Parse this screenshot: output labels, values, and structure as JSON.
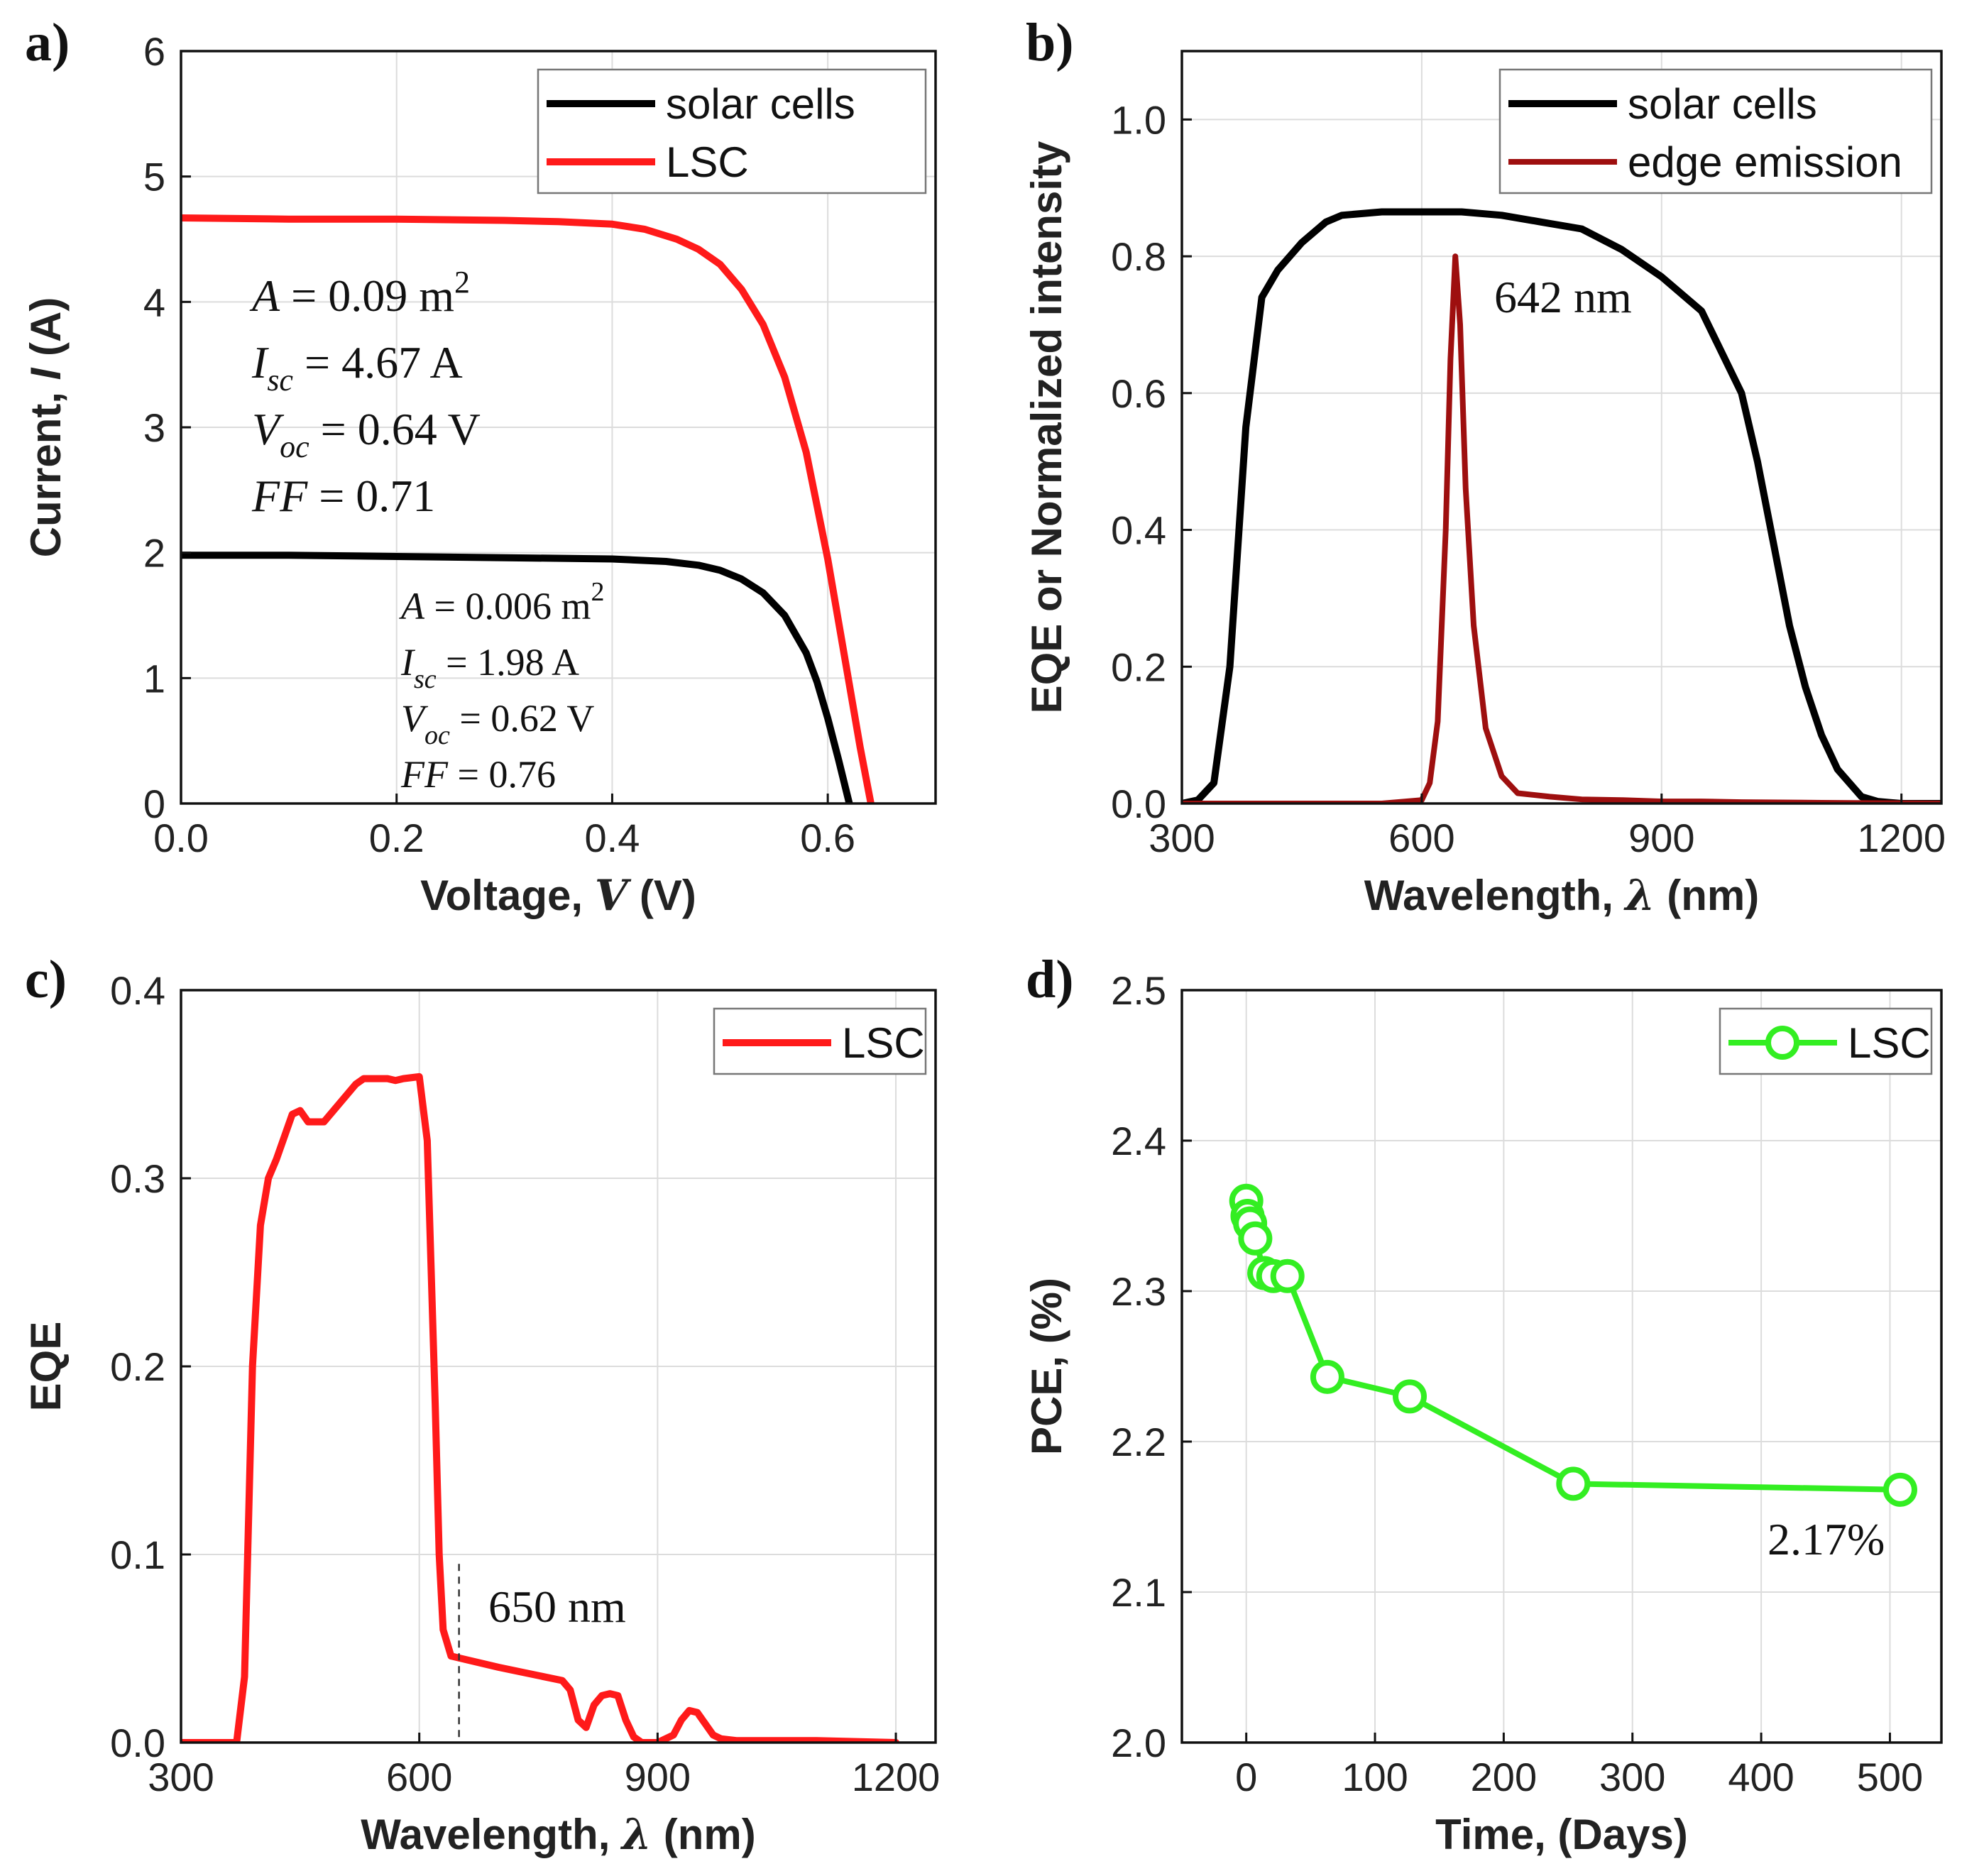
{
  "figure": {
    "colors": {
      "black": "#000000",
      "red": "#ff1a1a",
      "darkred": "#9e0f0f",
      "green": "#33ee22"
    }
  },
  "chart_data": [
    {
      "id": "a",
      "panel_label": "a)",
      "type": "line",
      "xlabel_pre": "Voltage, ",
      "xlabel_var": "V",
      "xlabel_post": " (V)",
      "ylabel_pre": "Current, ",
      "ylabel_var": "I",
      "ylabel_post": " (A)",
      "xlim": [
        0,
        0.7
      ],
      "ylim": [
        0,
        6
      ],
      "xticks": [
        0,
        0.2,
        0.4,
        0.6
      ],
      "xtick_labels": [
        "0.0",
        "0.2",
        "0.4",
        "0.6"
      ],
      "yticks": [
        0,
        1,
        2,
        3,
        4,
        5,
        6
      ],
      "ytick_labels": [
        "0",
        "1",
        "2",
        "3",
        "4",
        "5",
        "6"
      ],
      "grid": true,
      "legend_position": "top-right",
      "series": [
        {
          "name": "solar cells",
          "color": "#000000",
          "width": 10,
          "x": [
            0,
            0.1,
            0.2,
            0.3,
            0.4,
            0.45,
            0.48,
            0.5,
            0.52,
            0.54,
            0.56,
            0.58,
            0.59,
            0.6,
            0.61,
            0.62
          ],
          "y": [
            1.98,
            1.98,
            1.97,
            1.96,
            1.95,
            1.93,
            1.9,
            1.86,
            1.79,
            1.68,
            1.5,
            1.2,
            0.97,
            0.68,
            0.35,
            0.0
          ]
        },
        {
          "name": "LSC",
          "color": "#ff1a1a",
          "width": 10,
          "x": [
            0,
            0.1,
            0.2,
            0.3,
            0.35,
            0.4,
            0.43,
            0.46,
            0.48,
            0.5,
            0.52,
            0.54,
            0.56,
            0.58,
            0.6,
            0.61,
            0.62,
            0.63,
            0.64
          ],
          "y": [
            4.67,
            4.66,
            4.66,
            4.65,
            4.64,
            4.62,
            4.58,
            4.5,
            4.42,
            4.3,
            4.1,
            3.82,
            3.4,
            2.8,
            1.95,
            1.45,
            0.95,
            0.45,
            0.0
          ]
        }
      ],
      "annotations": [
        {
          "lines": [
            {
              "pre": "",
              "var": "A",
              "sub": "",
              "post": " = 0.09 m",
              "sup": "2"
            },
            {
              "pre": "",
              "var": "I",
              "sub": "sc",
              "post": " = 4.67 A",
              "sup": ""
            },
            {
              "pre": "",
              "var": "V",
              "sub": "oc",
              "post": " = 0.64 V",
              "sup": ""
            },
            {
              "pre": "",
              "var": "FF",
              "sub": "",
              "post": " = 0.71",
              "sup": ""
            }
          ]
        },
        {
          "lines": [
            {
              "pre": "",
              "var": "A",
              "sub": "",
              "post": " = 0.006 m",
              "sup": "2"
            },
            {
              "pre": "",
              "var": "I",
              "sub": "sc",
              "post": " = 1.98 A",
              "sup": ""
            },
            {
              "pre": "",
              "var": "V",
              "sub": "oc",
              "post": " = 0.62 V",
              "sup": ""
            },
            {
              "pre": "",
              "var": "FF",
              "sub": "",
              "post": " = 0.76",
              "sup": ""
            }
          ]
        }
      ]
    },
    {
      "id": "b",
      "panel_label": "b)",
      "type": "line",
      "xlabel_pre": "Wavelength, ",
      "xlabel_var": "λ",
      "xlabel_post": " (nm)",
      "ylabel_pre": "EQE or Normalized intensity",
      "ylabel_var": "",
      "ylabel_post": "",
      "xlim": [
        300,
        1250
      ],
      "ylim": [
        0,
        1.1
      ],
      "xticks": [
        300,
        600,
        900,
        1200
      ],
      "xtick_labels": [
        "300",
        "600",
        "900",
        "1200"
      ],
      "yticks": [
        0,
        0.2,
        0.4,
        0.6,
        0.8,
        1.0
      ],
      "ytick_labels": [
        "0.0",
        "0.2",
        "0.4",
        "0.6",
        "0.8",
        "1.0"
      ],
      "grid": true,
      "legend_position": "top-right",
      "series": [
        {
          "name": "solar cells",
          "color": "#000000",
          "width": 10,
          "x": [
            300,
            320,
            340,
            360,
            380,
            400,
            420,
            450,
            480,
            500,
            550,
            600,
            650,
            700,
            750,
            800,
            850,
            900,
            950,
            1000,
            1020,
            1040,
            1060,
            1080,
            1100,
            1120,
            1150,
            1170,
            1200,
            1250
          ],
          "y": [
            0,
            0.005,
            0.03,
            0.2,
            0.55,
            0.74,
            0.78,
            0.82,
            0.85,
            0.86,
            0.865,
            0.865,
            0.865,
            0.86,
            0.85,
            0.84,
            0.81,
            0.77,
            0.72,
            0.6,
            0.5,
            0.38,
            0.26,
            0.17,
            0.1,
            0.05,
            0.01,
            0.003,
            0,
            0
          ]
        },
        {
          "name": "edge emission",
          "color": "#9e0f0f",
          "width": 8,
          "x": [
            300,
            550,
            600,
            610,
            620,
            630,
            636,
            642,
            648,
            655,
            665,
            680,
            700,
            720,
            760,
            800,
            850,
            900,
            950,
            1000,
            1100,
            1250
          ],
          "y": [
            0,
            0,
            0.005,
            0.03,
            0.12,
            0.4,
            0.65,
            0.8,
            0.7,
            0.46,
            0.26,
            0.11,
            0.04,
            0.015,
            0.01,
            0.006,
            0.005,
            0.003,
            0.003,
            0.002,
            0.001,
            0
          ]
        }
      ],
      "annotations": [
        {
          "text": "642 nm"
        }
      ]
    },
    {
      "id": "c",
      "panel_label": "c)",
      "type": "line",
      "xlabel_pre": "Wavelength, ",
      "xlabel_var": "λ",
      "xlabel_post": " (nm)",
      "ylabel_pre": "EQE",
      "ylabel_var": "",
      "ylabel_post": "",
      "xlim": [
        300,
        1250
      ],
      "ylim": [
        0,
        0.4
      ],
      "xticks": [
        300,
        600,
        900,
        1200
      ],
      "xtick_labels": [
        "300",
        "600",
        "900",
        "1200"
      ],
      "yticks": [
        0,
        0.1,
        0.2,
        0.3,
        0.4
      ],
      "ytick_labels": [
        "0.0",
        "0.1",
        "0.2",
        "0.3",
        "0.4"
      ],
      "grid": true,
      "legend_position": "top-right",
      "marker_x": 650,
      "series": [
        {
          "name": "LSC",
          "color": "#ff1a1a",
          "width": 10,
          "x": [
            300,
            370,
            380,
            390,
            400,
            410,
            420,
            440,
            450,
            460,
            480,
            500,
            520,
            530,
            560,
            570,
            580,
            600,
            610,
            620,
            625,
            630,
            640,
            650,
            700,
            780,
            790,
            800,
            810,
            820,
            830,
            840,
            850,
            860,
            870,
            880,
            900,
            920,
            930,
            940,
            950,
            960,
            970,
            980,
            1000,
            1100,
            1200
          ],
          "y": [
            0,
            0,
            0.035,
            0.2,
            0.275,
            0.3,
            0.31,
            0.334,
            0.336,
            0.33,
            0.33,
            0.34,
            0.35,
            0.353,
            0.353,
            0.352,
            0.353,
            0.354,
            0.32,
            0.18,
            0.1,
            0.06,
            0.046,
            0.045,
            0.04,
            0.033,
            0.028,
            0.012,
            0.008,
            0.02,
            0.025,
            0.026,
            0.025,
            0.012,
            0.003,
            0.0,
            0.0,
            0.004,
            0.012,
            0.017,
            0.016,
            0.01,
            0.004,
            0.002,
            0.001,
            0.001,
            0
          ]
        }
      ],
      "annotations": [
        {
          "text": "650 nm"
        }
      ]
    },
    {
      "id": "d",
      "panel_label": "d)",
      "type": "scatter",
      "xlabel_pre": "Time, (Days)",
      "xlabel_var": "",
      "xlabel_post": "",
      "ylabel_pre": "PCE, (%)",
      "ylabel_var": "",
      "ylabel_post": "",
      "xlim": [
        -50,
        540
      ],
      "ylim": [
        2.0,
        2.5
      ],
      "xticks": [
        0,
        100,
        200,
        300,
        400,
        500
      ],
      "xtick_labels": [
        "0",
        "100",
        "200",
        "300",
        "400",
        "500"
      ],
      "yticks": [
        2.0,
        2.1,
        2.2,
        2.3,
        2.4,
        2.5
      ],
      "ytick_labels": [
        "2.0",
        "2.1",
        "2.2",
        "2.3",
        "2.4",
        "2.5"
      ],
      "grid": true,
      "legend_position": "top-right",
      "series": [
        {
          "name": "LSC",
          "color": "#33ee22",
          "width": 8,
          "marker": "open-circle",
          "x": [
            0,
            1,
            3,
            7,
            14,
            21,
            32,
            63,
            127,
            254,
            508
          ],
          "y": [
            2.36,
            2.35,
            2.345,
            2.335,
            2.312,
            2.31,
            2.31,
            2.243,
            2.23,
            2.172,
            2.168
          ]
        }
      ],
      "annotations": [
        {
          "text": "2.17%"
        }
      ]
    }
  ]
}
